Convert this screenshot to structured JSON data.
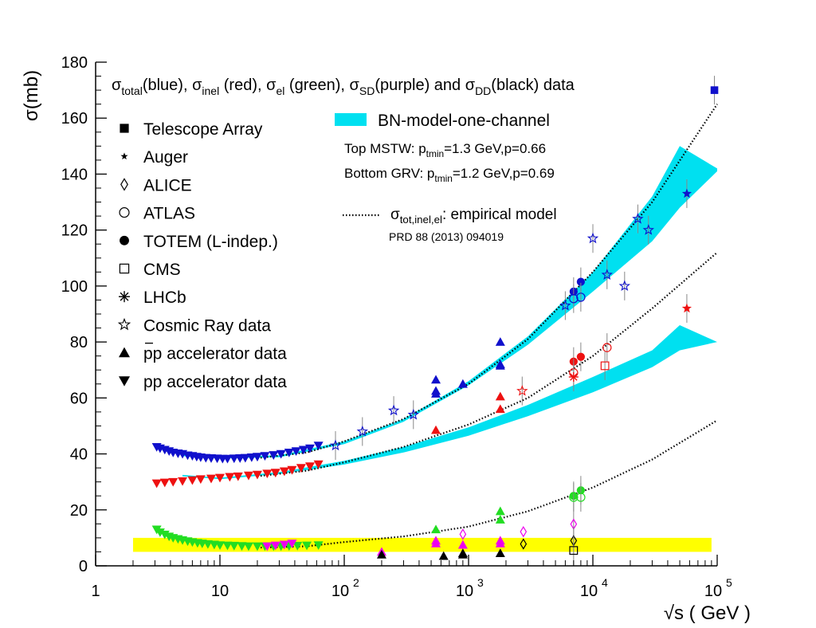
{
  "chart_data": {
    "type": "scatter",
    "title": "",
    "xlabel": "√s ( GeV )",
    "ylabel": "σ(mb)",
    "xscale": "log",
    "xlim": [
      1,
      100000
    ],
    "ylim": [
      0,
      180
    ],
    "grid": false,
    "x_tick_labels": [
      "1",
      "10",
      "10",
      "10",
      "10",
      "10"
    ],
    "x_tick_exponents": [
      "",
      "",
      "2",
      "3",
      "4",
      "5"
    ],
    "x_ticks": [
      1,
      10,
      100,
      1000,
      10000,
      100000
    ],
    "y_ticks": [
      0,
      20,
      40,
      60,
      80,
      100,
      120,
      140,
      160,
      180
    ],
    "y_tick_labels": [
      "0",
      "20",
      "40",
      "60",
      "80",
      "100",
      "120",
      "140",
      "160",
      "180"
    ],
    "header": {
      "parts": [
        {
          "base": "σ",
          "sub": "total",
          "after": "(blue), "
        },
        {
          "base": "σ",
          "sub": "inel",
          "after": " (red), "
        },
        {
          "base": "σ",
          "sub": "el",
          "after": " (green), "
        },
        {
          "base": "σ",
          "sub": "SD",
          "after": "(purple) and "
        },
        {
          "base": "σ",
          "sub": "DD",
          "after": "(black) data"
        }
      ]
    },
    "legend": {
      "placement": "left",
      "entries": [
        {
          "marker": "square-filled",
          "label": "Telescope Array"
        },
        {
          "marker": "star-small",
          "label": "Auger"
        },
        {
          "marker": "diamond-open",
          "label": "ALICE"
        },
        {
          "marker": "circle-open",
          "label": "ATLAS"
        },
        {
          "marker": "circle-filled",
          "label": "TOTEM (L-indep.)"
        },
        {
          "marker": "square-open",
          "label": "CMS"
        },
        {
          "marker": "asterisk",
          "label": "LHCb"
        },
        {
          "marker": "star-open",
          "label": "Cosmic Ray data"
        },
        {
          "marker": "triangle-up",
          "label": "pp accelerator data",
          "overbar": true
        },
        {
          "marker": "triangle-down",
          "label": "pp accelerator data",
          "overbar": false
        }
      ]
    },
    "model_legend": {
      "band_label": "BN-model-one-channel",
      "band_color": "#00e0f0",
      "line1": {
        "pre": "Top MSTW: p",
        "sub": "tmin",
        "post": "=1.3 GeV,p=0.66"
      },
      "line2": {
        "pre": "Bottom GRV: p",
        "sub": "tmin",
        "post": "=1.2 GeV,p=0.69"
      },
      "empirical": {
        "base": "σ",
        "sub": "tot,inel,el",
        "post": ": empirical model"
      },
      "reference": "PRD 88 (2013) 094019"
    },
    "colors": {
      "total": "#1010cc",
      "inel": "#ee1111",
      "el": "#22dd22",
      "sd": "#ee00ee",
      "dd": "#000000",
      "band": "#00e0f0",
      "yellow_band": "#ffff00"
    },
    "yellow_band": {
      "x": [
        2,
        90000
      ],
      "y": [
        5,
        10
      ]
    },
    "empirical_curves": {
      "total": {
        "x": [
          20,
          50,
          100,
          300,
          1000,
          3000,
          10000,
          30000,
          100000
        ],
        "y": [
          38.5,
          40.5,
          44.5,
          52.5,
          65,
          81,
          105,
          130,
          165
        ]
      },
      "inel": {
        "x": [
          20,
          50,
          100,
          300,
          1000,
          3000,
          10000,
          30000,
          100000
        ],
        "y": [
          32,
          34,
          37,
          42.5,
          50.5,
          60,
          75,
          92,
          112
        ]
      },
      "el": {
        "x": [
          20,
          50,
          100,
          300,
          1000,
          3000,
          10000,
          30000,
          100000
        ],
        "y": [
          6.5,
          7,
          8.5,
          10.5,
          14,
          19.5,
          28,
          38,
          52
        ]
      }
    },
    "bands": {
      "total": {
        "x": [
          5,
          10,
          30,
          100,
          300,
          1000,
          3000,
          10000,
          30000,
          50000,
          100000
        ],
        "upper": [
          39.8,
          39,
          39.5,
          44.5,
          52.5,
          66,
          82,
          105,
          132,
          150,
          142
        ],
        "lower": [
          39.2,
          38.4,
          38.8,
          43.5,
          51.5,
          64.5,
          79,
          98,
          116,
          128,
          141
        ]
      },
      "inel": {
        "x": [
          5,
          10,
          30,
          100,
          300,
          1000,
          3000,
          10000,
          30000,
          50000,
          100000
        ],
        "upper": [
          32.5,
          31.5,
          33.5,
          37.5,
          42.5,
          49.5,
          57.5,
          67.5,
          77,
          86,
          80
        ],
        "lower": [
          32.0,
          31.0,
          32.8,
          36.2,
          40.5,
          46.5,
          53.5,
          62,
          71,
          77,
          80
        ]
      }
    },
    "series": [
      {
        "name": "total",
        "marker": "triangle-down",
        "color": "#1010cc",
        "x": [
          3.1,
          3.3,
          3.6,
          3.9,
          4.2,
          4.6,
          5,
          5.5,
          6,
          6.5,
          7,
          7.7,
          8.5,
          9.5,
          10.5,
          11.5,
          13,
          14.5,
          16,
          18,
          20,
          23,
          27,
          31,
          36,
          41,
          47,
          53,
          62
        ],
        "y": [
          42.5,
          42,
          41.5,
          41,
          40.5,
          40.2,
          40,
          39.5,
          39.3,
          39,
          38.8,
          38.6,
          38.5,
          38.4,
          38.3,
          38.3,
          38.4,
          38.5,
          38.6,
          38.8,
          39,
          39.3,
          39.6,
          40,
          40.5,
          41,
          41.5,
          42,
          43
        ]
      },
      {
        "name": "total",
        "marker": "triangle-up",
        "color": "#1010cc",
        "x": [
          546,
          546,
          546,
          900,
          1800,
          1800,
          1800
        ],
        "y": [
          61.5,
          62.5,
          66.5,
          65,
          80,
          72,
          71.5
        ]
      },
      {
        "name": "total",
        "marker": "circle-filled",
        "color": "#1010cc",
        "x": [
          7000,
          8000
        ],
        "y": [
          98,
          101.5
        ]
      },
      {
        "name": "total",
        "marker": "circle-open",
        "color": "#1010cc",
        "x": [
          7000,
          8000
        ],
        "y": [
          95.5,
          96
        ]
      },
      {
        "name": "total",
        "marker": "star-open",
        "color": "#1010cc",
        "x": [
          85,
          140,
          250,
          360,
          6000,
          10000,
          13000,
          18000,
          23000,
          28000
        ],
        "y": [
          43,
          48,
          55.5,
          54,
          93,
          117,
          104,
          100,
          124,
          120
        ]
      },
      {
        "name": "total",
        "marker": "star-small",
        "color": "#1010cc",
        "x": [
          57000
        ],
        "y": [
          133
        ]
      },
      {
        "name": "total",
        "marker": "square-filled",
        "color": "#1010cc",
        "x": [
          95000
        ],
        "y": [
          170
        ]
      },
      {
        "name": "inel",
        "marker": "triangle-down",
        "color": "#ee1111",
        "x": [
          3.1,
          3.6,
          4.2,
          5,
          6,
          7,
          8.5,
          10,
          12,
          14,
          17,
          20,
          24,
          28,
          33,
          38,
          45,
          53,
          62
        ],
        "y": [
          29.5,
          29.8,
          30,
          30.3,
          30.6,
          31,
          31.2,
          31.5,
          31.8,
          32,
          32.3,
          32.6,
          33,
          33.3,
          33.8,
          34.3,
          35,
          35.6,
          36.3
        ]
      },
      {
        "name": "inel",
        "marker": "triangle-up",
        "color": "#ee1111",
        "x": [
          546,
          1800,
          1800
        ],
        "y": [
          48.5,
          60.5,
          56
        ]
      },
      {
        "name": "inel",
        "marker": "star-open",
        "color": "#ee1111",
        "x": [
          2700
        ],
        "y": [
          62.5
        ]
      },
      {
        "name": "inel",
        "marker": "circle-filled",
        "color": "#ee1111",
        "x": [
          7000,
          8000
        ],
        "y": [
          73,
          74.7
        ]
      },
      {
        "name": "inel",
        "marker": "circle-open",
        "color": "#ee1111",
        "x": [
          7000,
          13000
        ],
        "y": [
          69,
          78
        ]
      },
      {
        "name": "inel",
        "marker": "square-open",
        "color": "#ee1111",
        "x": [
          12500
        ],
        "y": [
          71.5
        ]
      },
      {
        "name": "inel",
        "marker": "asterisk",
        "color": "#ee1111",
        "x": [
          7000
        ],
        "y": [
          67.5
        ]
      },
      {
        "name": "inel",
        "marker": "star-small",
        "color": "#ee1111",
        "x": [
          57000
        ],
        "y": [
          92
        ]
      },
      {
        "name": "el",
        "marker": "triangle-down",
        "color": "#22dd22",
        "x": [
          3.1,
          3.3,
          3.6,
          3.9,
          4.2,
          4.6,
          5,
          5.5,
          6,
          6.6,
          7.2,
          8,
          9,
          10,
          11.5,
          13,
          15,
          17,
          20,
          23,
          27,
          31,
          36,
          42,
          50,
          62
        ],
        "y": [
          13,
          12,
          11.2,
          10.5,
          10,
          9.6,
          9.2,
          8.8,
          8.5,
          8.2,
          8,
          7.8,
          7.6,
          7.4,
          7.3,
          7.2,
          7.1,
          7,
          7,
          7,
          7,
          7,
          7.1,
          7.2,
          7.3,
          7.4
        ]
      },
      {
        "name": "el",
        "marker": "triangle-up",
        "color": "#22dd22",
        "x": [
          546,
          1800,
          1800
        ],
        "y": [
          13,
          19.5,
          16.5
        ]
      },
      {
        "name": "el",
        "marker": "circle-filled",
        "color": "#22dd22",
        "x": [
          7000,
          8000
        ],
        "y": [
          25,
          27
        ]
      },
      {
        "name": "el",
        "marker": "circle-open",
        "color": "#22dd22",
        "x": [
          7000,
          8000
        ],
        "y": [
          24.5,
          24.5
        ]
      },
      {
        "name": "sd",
        "marker": "triangle-down",
        "color": "#ee00ee",
        "x": [
          24,
          28,
          33,
          38
        ],
        "y": [
          7,
          7.3,
          7.6,
          8
        ]
      },
      {
        "name": "sd",
        "marker": "triangle-up",
        "color": "#ee00ee",
        "x": [
          200,
          546,
          546,
          900,
          1800,
          1800
        ],
        "y": [
          5,
          9,
          8,
          7.5,
          9,
          8
        ]
      },
      {
        "name": "sd",
        "marker": "diamond-open",
        "color": "#ee00ee",
        "x": [
          900,
          2760,
          7000
        ],
        "y": [
          11.3,
          12.2,
          14.9
        ]
      },
      {
        "name": "dd",
        "marker": "triangle-up",
        "color": "#000000",
        "x": [
          200,
          630,
          900,
          900,
          1800
        ],
        "y": [
          4,
          3.5,
          4.5,
          4,
          4.5
        ]
      },
      {
        "name": "dd",
        "marker": "diamond-open",
        "color": "#000000",
        "x": [
          2760,
          7000
        ],
        "y": [
          7.8,
          9.0
        ]
      },
      {
        "name": "dd",
        "marker": "square-open",
        "color": "#000000",
        "x": [
          7000
        ],
        "y": [
          5.5
        ]
      }
    ]
  }
}
